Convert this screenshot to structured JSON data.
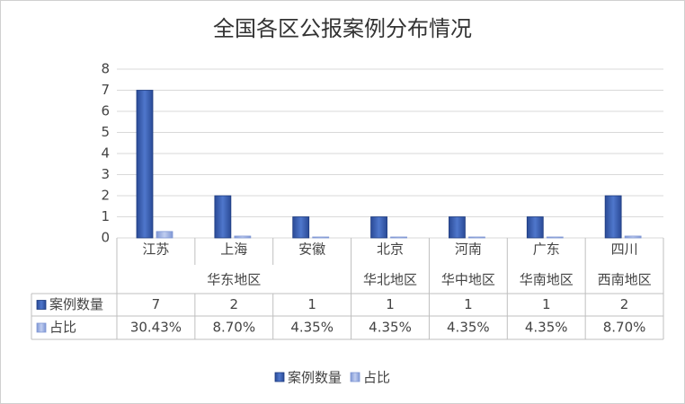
{
  "chart_data": {
    "type": "bar",
    "title": "全国各区公报案例分布情况",
    "categories": [
      "江苏",
      "上海",
      "安徽",
      "北京",
      "河南",
      "广东",
      "四川"
    ],
    "groups": [
      {
        "name": "华东地区",
        "categories": [
          "江苏",
          "上海",
          "安徽"
        ]
      },
      {
        "name": "华北地区",
        "categories": [
          "北京"
        ]
      },
      {
        "name": "华中地区",
        "categories": [
          "河南"
        ]
      },
      {
        "name": "华南地区",
        "categories": [
          "广东"
        ]
      },
      {
        "name": "西南地区",
        "categories": [
          "四川"
        ]
      }
    ],
    "series": [
      {
        "name": "案例数量",
        "color": "#3a5fb0",
        "values": [
          7,
          2,
          1,
          1,
          1,
          1,
          2
        ]
      },
      {
        "name": "占比",
        "color": "#9db0e2",
        "values": [
          0.3043,
          0.087,
          0.0435,
          0.0435,
          0.0435,
          0.0435,
          0.087
        ],
        "value_labels": [
          "30.43%",
          "8.70%",
          "4.35%",
          "4.35%",
          "4.35%",
          "4.35%",
          "8.70%"
        ]
      }
    ],
    "ylim": [
      0,
      8
    ],
    "yticks": [
      0,
      1,
      2,
      3,
      4,
      5,
      6,
      7,
      8
    ],
    "grid": true,
    "legend": "bottom"
  }
}
